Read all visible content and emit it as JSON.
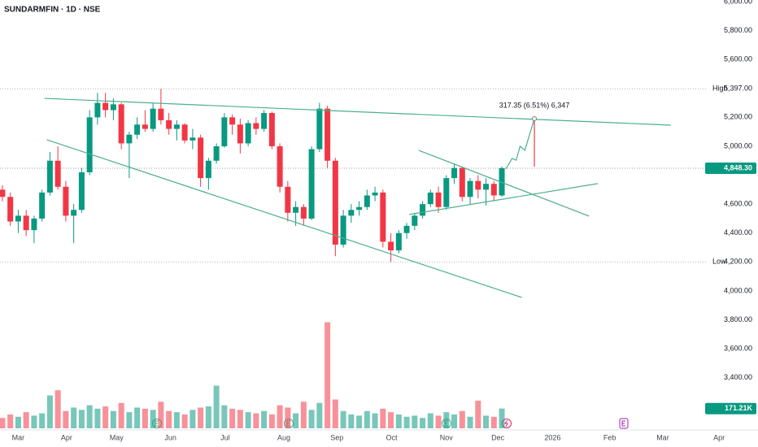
{
  "chart_data": {
    "type": "candlestick",
    "title": "SUNDARMFIN · 1D · NSE",
    "x": [
      0,
      1,
      2,
      3,
      4,
      5,
      6,
      7,
      8,
      9,
      10,
      11,
      12,
      13,
      14,
      15,
      16,
      17,
      18,
      19,
      20,
      21,
      22,
      23,
      24,
      25,
      26,
      27,
      28,
      29,
      30,
      31,
      32,
      33,
      34,
      35,
      36,
      37,
      38,
      39,
      40,
      41,
      42,
      43,
      44,
      45,
      46,
      47,
      48,
      49,
      50,
      51,
      52,
      53,
      54,
      55,
      56,
      57,
      58,
      59,
      60,
      61,
      62,
      63
    ],
    "open": [
      4700,
      4650,
      4480,
      4520,
      4420,
      4500,
      4680,
      4900,
      4720,
      4520,
      4560,
      4820,
      5200,
      5300,
      5250,
      5290,
      5020,
      5080,
      5150,
      5120,
      5260,
      5180,
      5120,
      5150,
      5040,
      5060,
      4780,
      4900,
      5000,
      5200,
      5150,
      5020,
      5160,
      5120,
      5230,
      5000,
      4720,
      4540,
      4580,
      4500,
      4980,
      5260,
      4900,
      4320,
      4520,
      4560,
      4580,
      4660,
      4680,
      4340,
      4280,
      4400,
      4450,
      4520,
      4600,
      4680,
      4580,
      4780,
      4850,
      4650,
      4760,
      4700,
      4740,
      4660
    ],
    "high": [
      4730,
      4680,
      4560,
      4560,
      4520,
      4700,
      4960,
      5000,
      4760,
      4600,
      4850,
      5250,
      5370,
      5370,
      5330,
      5300,
      5100,
      5200,
      5250,
      5300,
      5397,
      5230,
      5180,
      5160,
      5120,
      5080,
      4920,
      5020,
      5230,
      5220,
      5190,
      5180,
      5200,
      5250,
      5240,
      5020,
      4760,
      4620,
      4600,
      5000,
      5300,
      5280,
      4920,
      4560,
      4600,
      4620,
      4700,
      4720,
      4700,
      4400,
      4420,
      4470,
      4540,
      4620,
      4700,
      4720,
      4800,
      4880,
      4860,
      4780,
      4800,
      4780,
      4760,
      4860
    ],
    "low": [
      4620,
      4450,
      4400,
      4380,
      4330,
      4480,
      4660,
      4700,
      4480,
      4330,
      4540,
      4800,
      5150,
      5200,
      5180,
      4980,
      4780,
      5050,
      5100,
      5100,
      5150,
      5080,
      5040,
      5020,
      4980,
      4720,
      4700,
      4880,
      4990,
      5080,
      4950,
      5000,
      5080,
      5100,
      4980,
      4680,
      4480,
      4450,
      4450,
      4490,
      4960,
      4850,
      4240,
      4300,
      4470,
      4520,
      4560,
      4620,
      4300,
      4200,
      4260,
      4360,
      4420,
      4500,
      4580,
      4540,
      4560,
      4740,
      4620,
      4600,
      4640,
      4590,
      4620,
      4650
    ],
    "close": [
      4650,
      4480,
      4520,
      4420,
      4500,
      4680,
      4900,
      4720,
      4520,
      4560,
      4820,
      5200,
      5300,
      5250,
      5290,
      5020,
      5080,
      5150,
      5120,
      5260,
      5180,
      5120,
      5150,
      5040,
      5060,
      4780,
      4900,
      5000,
      5200,
      5150,
      5020,
      5160,
      5120,
      5230,
      5000,
      4720,
      4540,
      4580,
      4500,
      4980,
      5260,
      4900,
      4320,
      4520,
      4560,
      4580,
      4660,
      4680,
      4340,
      4280,
      4400,
      4450,
      4520,
      4600,
      4680,
      4580,
      4780,
      4850,
      4650,
      4760,
      4700,
      4740,
      4660,
      4848.3
    ],
    "volume": [
      90000,
      120000,
      100000,
      140000,
      110000,
      130000,
      285000,
      330000,
      150000,
      180000,
      160000,
      200000,
      170000,
      190000,
      150000,
      220000,
      140000,
      180000,
      170000,
      160000,
      230000,
      150000,
      140000,
      120000,
      160000,
      180000,
      190000,
      370000,
      200000,
      170000,
      160000,
      140000,
      130000,
      150000,
      120000,
      200000,
      180000,
      130000,
      230000,
      160000,
      220000,
      920000,
      250000,
      150000,
      120000,
      110000,
      150000,
      130000,
      170000,
      140000,
      120000,
      100000,
      110000,
      90000,
      130000,
      110000,
      140000,
      120000,
      150000,
      100000,
      240000,
      110000,
      100000,
      171210
    ],
    "up_color": "#089981",
    "down_color": "#f23645",
    "line_color": "#4caf8c",
    "xlim": [
      -0.3,
      91
    ],
    "ylim": [
      3050,
      6000
    ],
    "volume_ylim": [
      0,
      3700000
    ],
    "xticks": [
      {
        "value": 2,
        "label": "Mar"
      },
      {
        "value": 8.1,
        "label": "Apr"
      },
      {
        "value": 14.4,
        "label": "May"
      },
      {
        "value": 21.2,
        "label": "Jun"
      },
      {
        "value": 28.1,
        "label": "Jul"
      },
      {
        "value": 35.5,
        "label": "Aug"
      },
      {
        "value": 42.2,
        "label": "Sep"
      },
      {
        "value": 49.1,
        "label": "Oct"
      },
      {
        "value": 56,
        "label": "Nov"
      },
      {
        "value": 62.5,
        "label": "Dec"
      },
      {
        "value": 69.4,
        "label": "2026"
      },
      {
        "value": 76.6,
        "label": "Feb"
      },
      {
        "value": 83.3,
        "label": "Mar"
      },
      {
        "value": 90.4,
        "label": "Apr"
      }
    ],
    "yticks": [
      {
        "value": 6000,
        "label": "6,000.00"
      },
      {
        "value": 5800,
        "label": "5,800.00"
      },
      {
        "value": 5600,
        "label": "5,600.00"
      },
      {
        "value": 5200,
        "label": "5,200.00"
      },
      {
        "value": 5000,
        "label": "5,000.00"
      },
      {
        "value": 4600,
        "label": "4,600.00"
      },
      {
        "value": 4400,
        "label": "4,400.00"
      },
      {
        "value": 4000,
        "label": "4,000.00"
      },
      {
        "value": 3800,
        "label": "3,800.00"
      },
      {
        "value": 3600,
        "label": "3,600.00"
      },
      {
        "value": 3400,
        "label": "3,400.00"
      }
    ],
    "high_level": {
      "name": "High",
      "value": 5397,
      "label": "5,397.00"
    },
    "low_level": {
      "name": "Low",
      "value": 4200,
      "label": "4,200.00"
    },
    "last_price": {
      "value": 4848.3,
      "label": "4,848.30"
    },
    "volume_label": {
      "value": 171210,
      "label": "171.21K"
    },
    "trendlines": [
      {
        "x": [
          5.3,
          84.3
        ],
        "y": [
          5331,
          5146
        ]
      },
      {
        "x": [
          5.6,
          65.5
        ],
        "y": [
          5045,
          3955
        ]
      },
      {
        "x": [
          52.5,
          74
        ],
        "y": [
          4972,
          4517
        ]
      },
      {
        "x": [
          51.3,
          75.1
        ],
        "y": [
          4528,
          4742
        ]
      }
    ],
    "projection": {
      "x": [
        63.5,
        64.3,
        64.8,
        65.3,
        65.9,
        67.1
      ],
      "y": [
        4843,
        4916,
        4904,
        5000,
        4972,
        5191
      ]
    },
    "measure": {
      "x": [
        67.1,
        67.1
      ],
      "y": [
        5191,
        4860
      ],
      "label": "317.35 (6.51%) 6,347"
    }
  }
}
